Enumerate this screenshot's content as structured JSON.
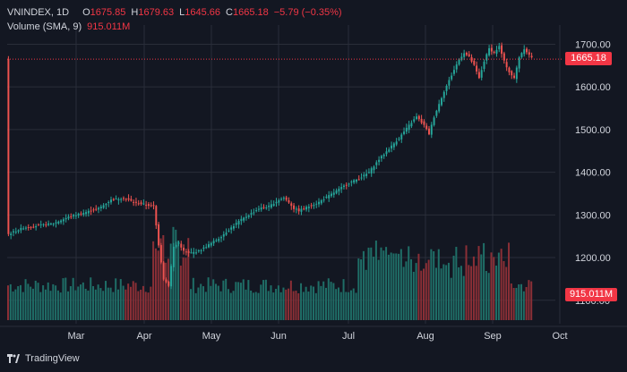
{
  "legend": {
    "symbol": "VNINDEX, 1D",
    "o_label": "O",
    "o_val": "1675.85",
    "h_label": "H",
    "h_val": "1679.63",
    "l_label": "L",
    "l_val": "1645.66",
    "c_label": "C",
    "c_val": "1665.18",
    "change": "−5.79 (−0.35%)",
    "vol_label": "Volume (SMA, 9)",
    "vol_val": "915.011M"
  },
  "price_tag": "1665.18",
  "volume_tag": "915.011M",
  "footer": {
    "brand": "TradingView"
  },
  "colors": {
    "up": "#26a69a",
    "down": "#ef5350",
    "bg": "#131722",
    "grid": "#2a2e39",
    "text": "#d1d4dc",
    "tag": "#f23645"
  },
  "chart_data": {
    "type": "candlestick",
    "title": "VNINDEX, 1D",
    "price_ticks": [
      "1700.00",
      "1600.00",
      "1500.00",
      "1400.00",
      "1300.00",
      "1200.00",
      "1100.00"
    ],
    "price_tick_values": [
      1700,
      1600,
      1500,
      1400,
      1300,
      1200,
      1100
    ],
    "ylim": [
      1045,
      1745
    ],
    "x_labels": [
      "Mar",
      "Apr",
      "May",
      "Jun",
      "Jul",
      "Aug",
      "Sep",
      "Oct"
    ],
    "x_label_dates": [
      "Mar",
      "Apr",
      "May",
      "Jun",
      "Jul",
      "Aug",
      "Sep",
      "Oct"
    ],
    "last_close": 1665.18,
    "close_path": [
      [
        0,
        1255
      ],
      [
        6,
        1270
      ],
      [
        12,
        1275
      ],
      [
        18,
        1280
      ],
      [
        24,
        1295
      ],
      [
        30,
        1305
      ],
      [
        36,
        1315
      ],
      [
        41,
        1335
      ],
      [
        46,
        1340
      ],
      [
        50,
        1330
      ],
      [
        54,
        1325
      ],
      [
        58,
        1320
      ],
      [
        60,
        1230
      ],
      [
        62,
        1150
      ],
      [
        64,
        1135
      ],
      [
        66,
        1225
      ],
      [
        68,
        1235
      ],
      [
        70,
        1215
      ],
      [
        72,
        1210
      ],
      [
        76,
        1215
      ],
      [
        80,
        1230
      ],
      [
        84,
        1245
      ],
      [
        88,
        1265
      ],
      [
        92,
        1285
      ],
      [
        96,
        1300
      ],
      [
        100,
        1315
      ],
      [
        104,
        1320
      ],
      [
        108,
        1335
      ],
      [
        110,
        1340
      ],
      [
        112,
        1330
      ],
      [
        114,
        1315
      ],
      [
        116,
        1310
      ],
      [
        120,
        1320
      ],
      [
        124,
        1330
      ],
      [
        128,
        1345
      ],
      [
        132,
        1360
      ],
      [
        136,
        1375
      ],
      [
        140,
        1385
      ],
      [
        144,
        1400
      ],
      [
        148,
        1430
      ],
      [
        152,
        1455
      ],
      [
        156,
        1480
      ],
      [
        160,
        1510
      ],
      [
        163,
        1530
      ],
      [
        166,
        1510
      ],
      [
        168,
        1490
      ],
      [
        170,
        1530
      ],
      [
        172,
        1560
      ],
      [
        174,
        1590
      ],
      [
        176,
        1615
      ],
      [
        178,
        1640
      ],
      [
        180,
        1665
      ],
      [
        182,
        1680
      ],
      [
        184,
        1670
      ],
      [
        186,
        1650
      ],
      [
        188,
        1620
      ],
      [
        190,
        1660
      ],
      [
        192,
        1690
      ],
      [
        194,
        1680
      ],
      [
        196,
        1695
      ],
      [
        198,
        1660
      ],
      [
        200,
        1635
      ],
      [
        202,
        1620
      ],
      [
        204,
        1670
      ],
      [
        206,
        1690
      ],
      [
        208,
        1675
      ],
      [
        210,
        1665
      ]
    ],
    "n_bars": 210,
    "volume_bars": "approximate daily volume, left to right, with an April spike and elevated Jul–Sep activity"
  }
}
